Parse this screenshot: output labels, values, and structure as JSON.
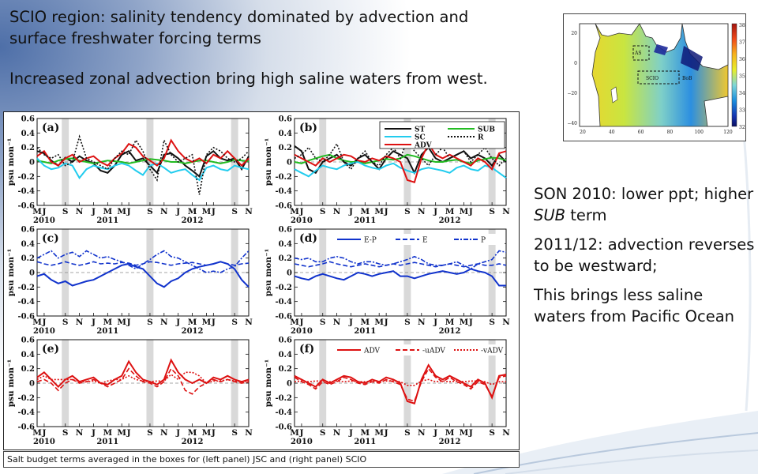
{
  "slide": {
    "title": "SCIO region: salinity tendency dominated by advection and surface freshwater forcing terms",
    "subtitle": "Increased zonal advection bring high saline waters from west.",
    "notes": [
      {
        "pre": "SON 2010: lower ppt; higher ",
        "em": "SUB",
        "post": " term"
      },
      {
        "pre": "2011/12: advection reverses to be westward;",
        "em": "",
        "post": ""
      },
      {
        "pre": "This brings less saline waters from Pacific Ocean",
        "em": "",
        "post": ""
      }
    ],
    "caption": "Salt budget terms averaged in the boxes for (left panel) JSC and (right panel) SCIO"
  },
  "map": {
    "lat_ticks": [
      "20",
      "0",
      "−20",
      "−40"
    ],
    "lon_ticks": [
      "20",
      "40",
      "60",
      "80",
      "100",
      "120"
    ],
    "colorbar_ticks": [
      "38",
      "37",
      "36",
      "35",
      "34",
      "33",
      "32"
    ],
    "box_labels": [
      "AS",
      "SCIO",
      "BoB"
    ]
  },
  "chart_data": {
    "type": "line",
    "x": [
      "M",
      "J",
      "J",
      "A",
      "S",
      "O",
      "N",
      "D",
      "J",
      "F",
      "M",
      "A",
      "M",
      "J",
      "J",
      "A",
      "S",
      "O",
      "N",
      "D",
      "J",
      "F",
      "M",
      "A",
      "M",
      "J",
      "J",
      "A",
      "S",
      "O",
      "N"
    ],
    "x_tick_labels": [
      "M",
      "J",
      "S",
      "N",
      "J",
      "M",
      "M",
      "J",
      "S",
      "N",
      "J",
      "M",
      "M",
      "J",
      "S",
      "N"
    ],
    "year_labels": [
      "2010",
      "2011",
      "2012"
    ],
    "ylim": [
      -0.6,
      0.6
    ],
    "y_ticks": [
      "0.6",
      "0.4",
      "0.2",
      "0",
      "-0.2",
      "-0.4",
      "-0.6"
    ],
    "ylabel": "psu mon⁻¹",
    "shaded_months": [
      "SON 2010",
      "SON 2011",
      "SON 2012"
    ],
    "panels": [
      {
        "label": "(a)",
        "legend": [],
        "series": [
          {
            "name": "ST",
            "color": "#111111",
            "dash": "solid",
            "values": [
              0.15,
              0.12,
              0.02,
              -0.05,
              0.06,
              0.0,
              0.08,
              0.02,
              -0.02,
              -0.12,
              -0.15,
              -0.05,
              0.1,
              0.15,
              0.02,
              0.05,
              -0.05,
              -0.15,
              0.1,
              0.12,
              0.05,
              -0.05,
              -0.12,
              -0.2,
              0.08,
              0.15,
              0.05,
              0.02,
              0.05,
              -0.1,
              0.08
            ]
          },
          {
            "name": "SUB",
            "color": "#22bb22",
            "dash": "solid",
            "values": [
              0.02,
              0.0,
              -0.02,
              0.02,
              0.04,
              0.05,
              0.02,
              0.0,
              -0.02,
              0.0,
              0.02,
              0.01,
              0.0,
              -0.02,
              0.0,
              0.02,
              0.04,
              0.03,
              0.02,
              0.0,
              0.0,
              -0.02,
              0.0,
              0.02,
              0.02,
              0.0,
              -0.02,
              0.0,
              0.03,
              0.02,
              0.01
            ]
          },
          {
            "name": "SC",
            "color": "#22ccee",
            "dash": "solid",
            "values": [
              0.05,
              -0.05,
              -0.1,
              -0.08,
              -0.02,
              -0.05,
              -0.22,
              -0.1,
              -0.05,
              -0.08,
              -0.1,
              -0.05,
              -0.02,
              -0.05,
              -0.12,
              -0.18,
              -0.05,
              -0.02,
              -0.08,
              -0.15,
              -0.12,
              -0.1,
              -0.18,
              -0.25,
              -0.08,
              -0.05,
              -0.1,
              -0.12,
              -0.05,
              -0.08,
              -0.1
            ]
          },
          {
            "name": "ADV",
            "color": "#dd1111",
            "dash": "solid",
            "values": [
              0.08,
              0.15,
              0.0,
              -0.05,
              0.05,
              0.1,
              0.0,
              0.05,
              0.08,
              0.0,
              -0.05,
              0.05,
              0.12,
              0.25,
              0.2,
              0.08,
              0.02,
              -0.05,
              0.05,
              0.3,
              0.15,
              0.05,
              0.0,
              0.05,
              -0.02,
              0.1,
              0.05,
              0.15,
              0.05,
              -0.05,
              0.05
            ]
          },
          {
            "name": "R",
            "color": "#111111",
            "dash": "dot",
            "values": [
              0.2,
              0.1,
              0.05,
              0.1,
              -0.05,
              0.0,
              0.35,
              0.05,
              0.0,
              -0.05,
              -0.1,
              0.05,
              0.15,
              0.1,
              0.3,
              0.15,
              -0.1,
              -0.25,
              0.3,
              0.1,
              0.0,
              0.05,
              0.1,
              -0.45,
              0.1,
              0.2,
              0.15,
              0.05,
              0.0,
              0.05,
              0.15
            ]
          }
        ]
      },
      {
        "label": "(b)",
        "legend": [
          "ST",
          "SUB",
          "SC",
          "R",
          "ADV"
        ],
        "series": [
          {
            "name": "ST",
            "color": "#111111",
            "dash": "solid",
            "values": [
              0.22,
              0.15,
              -0.1,
              -0.15,
              0.0,
              0.05,
              0.1,
              0.0,
              -0.05,
              0.05,
              0.1,
              0.0,
              -0.1,
              0.05,
              0.15,
              0.1,
              0.05,
              -0.15,
              0.1,
              0.2,
              0.05,
              0.0,
              0.05,
              0.1,
              0.15,
              0.05,
              0.1,
              0.05,
              -0.05,
              0.1,
              0.0
            ]
          },
          {
            "name": "SUB",
            "color": "#22bb22",
            "dash": "solid",
            "values": [
              0.0,
              -0.02,
              0.02,
              0.05,
              0.08,
              0.1,
              0.05,
              0.02,
              0.0,
              0.0,
              -0.02,
              0.0,
              0.02,
              0.04,
              0.03,
              0.05,
              0.1,
              0.08,
              0.05,
              0.02,
              0.0,
              0.0,
              0.02,
              0.03,
              0.0,
              -0.02,
              0.02,
              0.04,
              0.06,
              0.05,
              0.02
            ]
          },
          {
            "name": "SC",
            "color": "#22ccee",
            "dash": "solid",
            "values": [
              -0.1,
              -0.15,
              -0.2,
              -0.12,
              -0.05,
              -0.08,
              -0.1,
              -0.05,
              -0.02,
              0.0,
              -0.05,
              -0.08,
              -0.1,
              -0.05,
              -0.02,
              -0.08,
              -0.12,
              -0.15,
              -0.1,
              -0.08,
              -0.1,
              -0.12,
              -0.15,
              -0.08,
              -0.05,
              -0.1,
              -0.12,
              -0.05,
              -0.08,
              -0.15,
              -0.22
            ]
          },
          {
            "name": "ADV",
            "color": "#dd1111",
            "dash": "solid",
            "values": [
              0.1,
              0.05,
              0.0,
              -0.05,
              0.05,
              0.0,
              0.05,
              0.1,
              0.08,
              0.02,
              0.0,
              0.05,
              0.02,
              0.08,
              0.05,
              0.0,
              -0.25,
              -0.28,
              0.05,
              0.25,
              0.1,
              0.05,
              0.1,
              0.05,
              0.0,
              -0.05,
              0.05,
              0.0,
              -0.1,
              0.12,
              0.15
            ]
          },
          {
            "name": "R",
            "color": "#111111",
            "dash": "dot",
            "values": [
              0.05,
              0.1,
              0.2,
              0.05,
              0.0,
              0.1,
              0.25,
              0.0,
              -0.1,
              0.05,
              0.15,
              0.0,
              -0.05,
              0.1,
              0.2,
              0.05,
              0.3,
              0.15,
              0.05,
              -0.05,
              0.1,
              0.2,
              0.05,
              0.1,
              0.15,
              0.0,
              0.1,
              0.2,
              0.05,
              -0.05,
              0.05
            ]
          }
        ]
      },
      {
        "label": "(c)",
        "legend": [],
        "series": [
          {
            "name": "E-P",
            "color": "#1133cc",
            "dash": "solid",
            "values": [
              -0.05,
              -0.02,
              -0.1,
              -0.15,
              -0.12,
              -0.18,
              -0.15,
              -0.12,
              -0.1,
              -0.05,
              0.0,
              0.05,
              0.1,
              0.12,
              0.08,
              0.05,
              -0.05,
              -0.15,
              -0.2,
              -0.12,
              -0.08,
              0.0,
              0.05,
              0.08,
              0.1,
              0.12,
              0.15,
              0.12,
              0.05,
              -0.1,
              -0.2
            ]
          },
          {
            "name": "E",
            "color": "#1133cc",
            "dash": "dash",
            "values": [
              0.15,
              0.12,
              0.1,
              0.12,
              0.15,
              0.12,
              0.1,
              0.12,
              0.15,
              0.12,
              0.13,
              0.12,
              0.14,
              0.13,
              0.1,
              0.12,
              0.15,
              0.14,
              0.12,
              0.1,
              0.12,
              0.13,
              0.14,
              0.12,
              0.1,
              0.12,
              0.15,
              0.12,
              0.1,
              0.12,
              0.13
            ]
          },
          {
            "name": "P",
            "color": "#1133cc",
            "dash": "dotdash",
            "values": [
              0.2,
              0.25,
              0.3,
              0.2,
              0.25,
              0.28,
              0.22,
              0.3,
              0.25,
              0.2,
              0.22,
              0.18,
              0.15,
              0.1,
              0.05,
              0.12,
              0.18,
              0.25,
              0.3,
              0.22,
              0.2,
              0.15,
              0.1,
              0.05,
              0.0,
              0.02,
              0.0,
              0.05,
              0.08,
              0.2,
              0.3
            ]
          }
        ]
      },
      {
        "label": "(d)",
        "legend": [
          "E-P",
          "E",
          "P"
        ],
        "series": [
          {
            "name": "E-P",
            "color": "#1133cc",
            "dash": "solid",
            "values": [
              -0.05,
              -0.08,
              -0.1,
              -0.05,
              -0.02,
              -0.05,
              -0.08,
              -0.1,
              -0.05,
              0.0,
              -0.02,
              -0.05,
              -0.02,
              0.0,
              0.02,
              -0.05,
              -0.05,
              -0.08,
              -0.05,
              -0.02,
              0.0,
              0.02,
              0.0,
              -0.02,
              0.0,
              0.05,
              0.02,
              0.0,
              -0.05,
              -0.18,
              -0.18
            ]
          },
          {
            "name": "E",
            "color": "#1133cc",
            "dash": "dash",
            "values": [
              0.12,
              0.1,
              0.08,
              0.1,
              0.12,
              0.15,
              0.12,
              0.1,
              0.08,
              0.1,
              0.12,
              0.1,
              0.08,
              0.1,
              0.12,
              0.1,
              0.12,
              0.14,
              0.12,
              0.1,
              0.08,
              0.1,
              0.12,
              0.1,
              0.08,
              0.1,
              0.12,
              0.1,
              0.1,
              0.12,
              0.1
            ]
          },
          {
            "name": "P",
            "color": "#1133cc",
            "dash": "dotdash",
            "values": [
              0.2,
              0.18,
              0.2,
              0.15,
              0.15,
              0.2,
              0.22,
              0.2,
              0.15,
              0.12,
              0.15,
              0.15,
              0.12,
              0.1,
              0.12,
              0.15,
              0.18,
              0.22,
              0.18,
              0.12,
              0.1,
              0.1,
              0.12,
              0.15,
              0.1,
              0.05,
              0.12,
              0.15,
              0.18,
              0.3,
              0.28
            ]
          }
        ]
      },
      {
        "label": "(e)",
        "legend": [],
        "series": [
          {
            "name": "ADV",
            "color": "#dd1111",
            "dash": "solid",
            "values": [
              0.08,
              0.15,
              0.05,
              -0.05,
              0.05,
              0.1,
              0.02,
              0.05,
              0.08,
              0.0,
              -0.02,
              0.05,
              0.1,
              0.3,
              0.15,
              0.05,
              0.02,
              -0.02,
              0.05,
              0.32,
              0.15,
              0.05,
              0.0,
              0.05,
              0.0,
              0.08,
              0.05,
              0.1,
              0.05,
              0.02,
              0.05
            ]
          },
          {
            "name": "-uADV",
            "color": "#dd1111",
            "dash": "dash",
            "values": [
              0.02,
              0.05,
              0.0,
              -0.1,
              0.0,
              0.05,
              0.0,
              0.02,
              0.05,
              0.0,
              -0.05,
              0.0,
              0.05,
              0.2,
              0.1,
              0.02,
              0.0,
              -0.05,
              0.02,
              0.2,
              0.1,
              -0.1,
              -0.15,
              -0.05,
              0.0,
              0.05,
              0.02,
              0.05,
              0.02,
              0.0,
              0.02
            ]
          },
          {
            "name": "-vADV",
            "color": "#dd1111",
            "dash": "dot",
            "values": [
              0.05,
              0.1,
              0.05,
              0.05,
              0.05,
              0.05,
              0.02,
              0.02,
              0.03,
              0.0,
              0.03,
              0.05,
              0.05,
              0.1,
              0.05,
              0.03,
              0.02,
              0.03,
              0.03,
              0.12,
              0.05,
              0.15,
              0.15,
              0.1,
              0.0,
              0.03,
              0.03,
              0.05,
              0.03,
              0.02,
              0.03
            ]
          }
        ]
      },
      {
        "label": "(f)",
        "legend": [
          "ADV",
          "-uADV",
          "-vADV"
        ],
        "series": [
          {
            "name": "ADV",
            "color": "#dd1111",
            "dash": "solid",
            "values": [
              0.1,
              0.05,
              0.0,
              -0.05,
              0.05,
              0.0,
              0.05,
              0.1,
              0.08,
              0.02,
              0.0,
              0.05,
              0.02,
              0.08,
              0.05,
              0.0,
              -0.25,
              -0.28,
              0.05,
              0.25,
              0.1,
              0.05,
              0.1,
              0.05,
              0.0,
              -0.05,
              0.05,
              0.0,
              -0.2,
              0.1,
              0.12
            ]
          },
          {
            "name": "-uADV",
            "color": "#dd1111",
            "dash": "dash",
            "values": [
              0.08,
              0.02,
              -0.02,
              -0.08,
              0.02,
              -0.02,
              0.02,
              0.08,
              0.05,
              0.0,
              -0.02,
              0.02,
              0.0,
              0.05,
              0.02,
              -0.02,
              -0.22,
              -0.25,
              0.02,
              0.2,
              0.08,
              0.02,
              0.08,
              0.02,
              -0.02,
              -0.08,
              0.02,
              -0.02,
              -0.18,
              0.08,
              0.1
            ]
          },
          {
            "name": "-vADV",
            "color": "#dd1111",
            "dash": "dot",
            "values": [
              0.02,
              0.03,
              0.02,
              0.03,
              0.03,
              0.02,
              0.03,
              0.02,
              0.03,
              0.02,
              0.02,
              0.03,
              0.02,
              0.03,
              0.03,
              0.02,
              -0.03,
              -0.03,
              0.03,
              0.05,
              0.02,
              0.03,
              0.02,
              0.03,
              0.02,
              0.03,
              0.03,
              0.02,
              -0.02,
              0.02,
              0.02
            ]
          }
        ]
      }
    ]
  }
}
